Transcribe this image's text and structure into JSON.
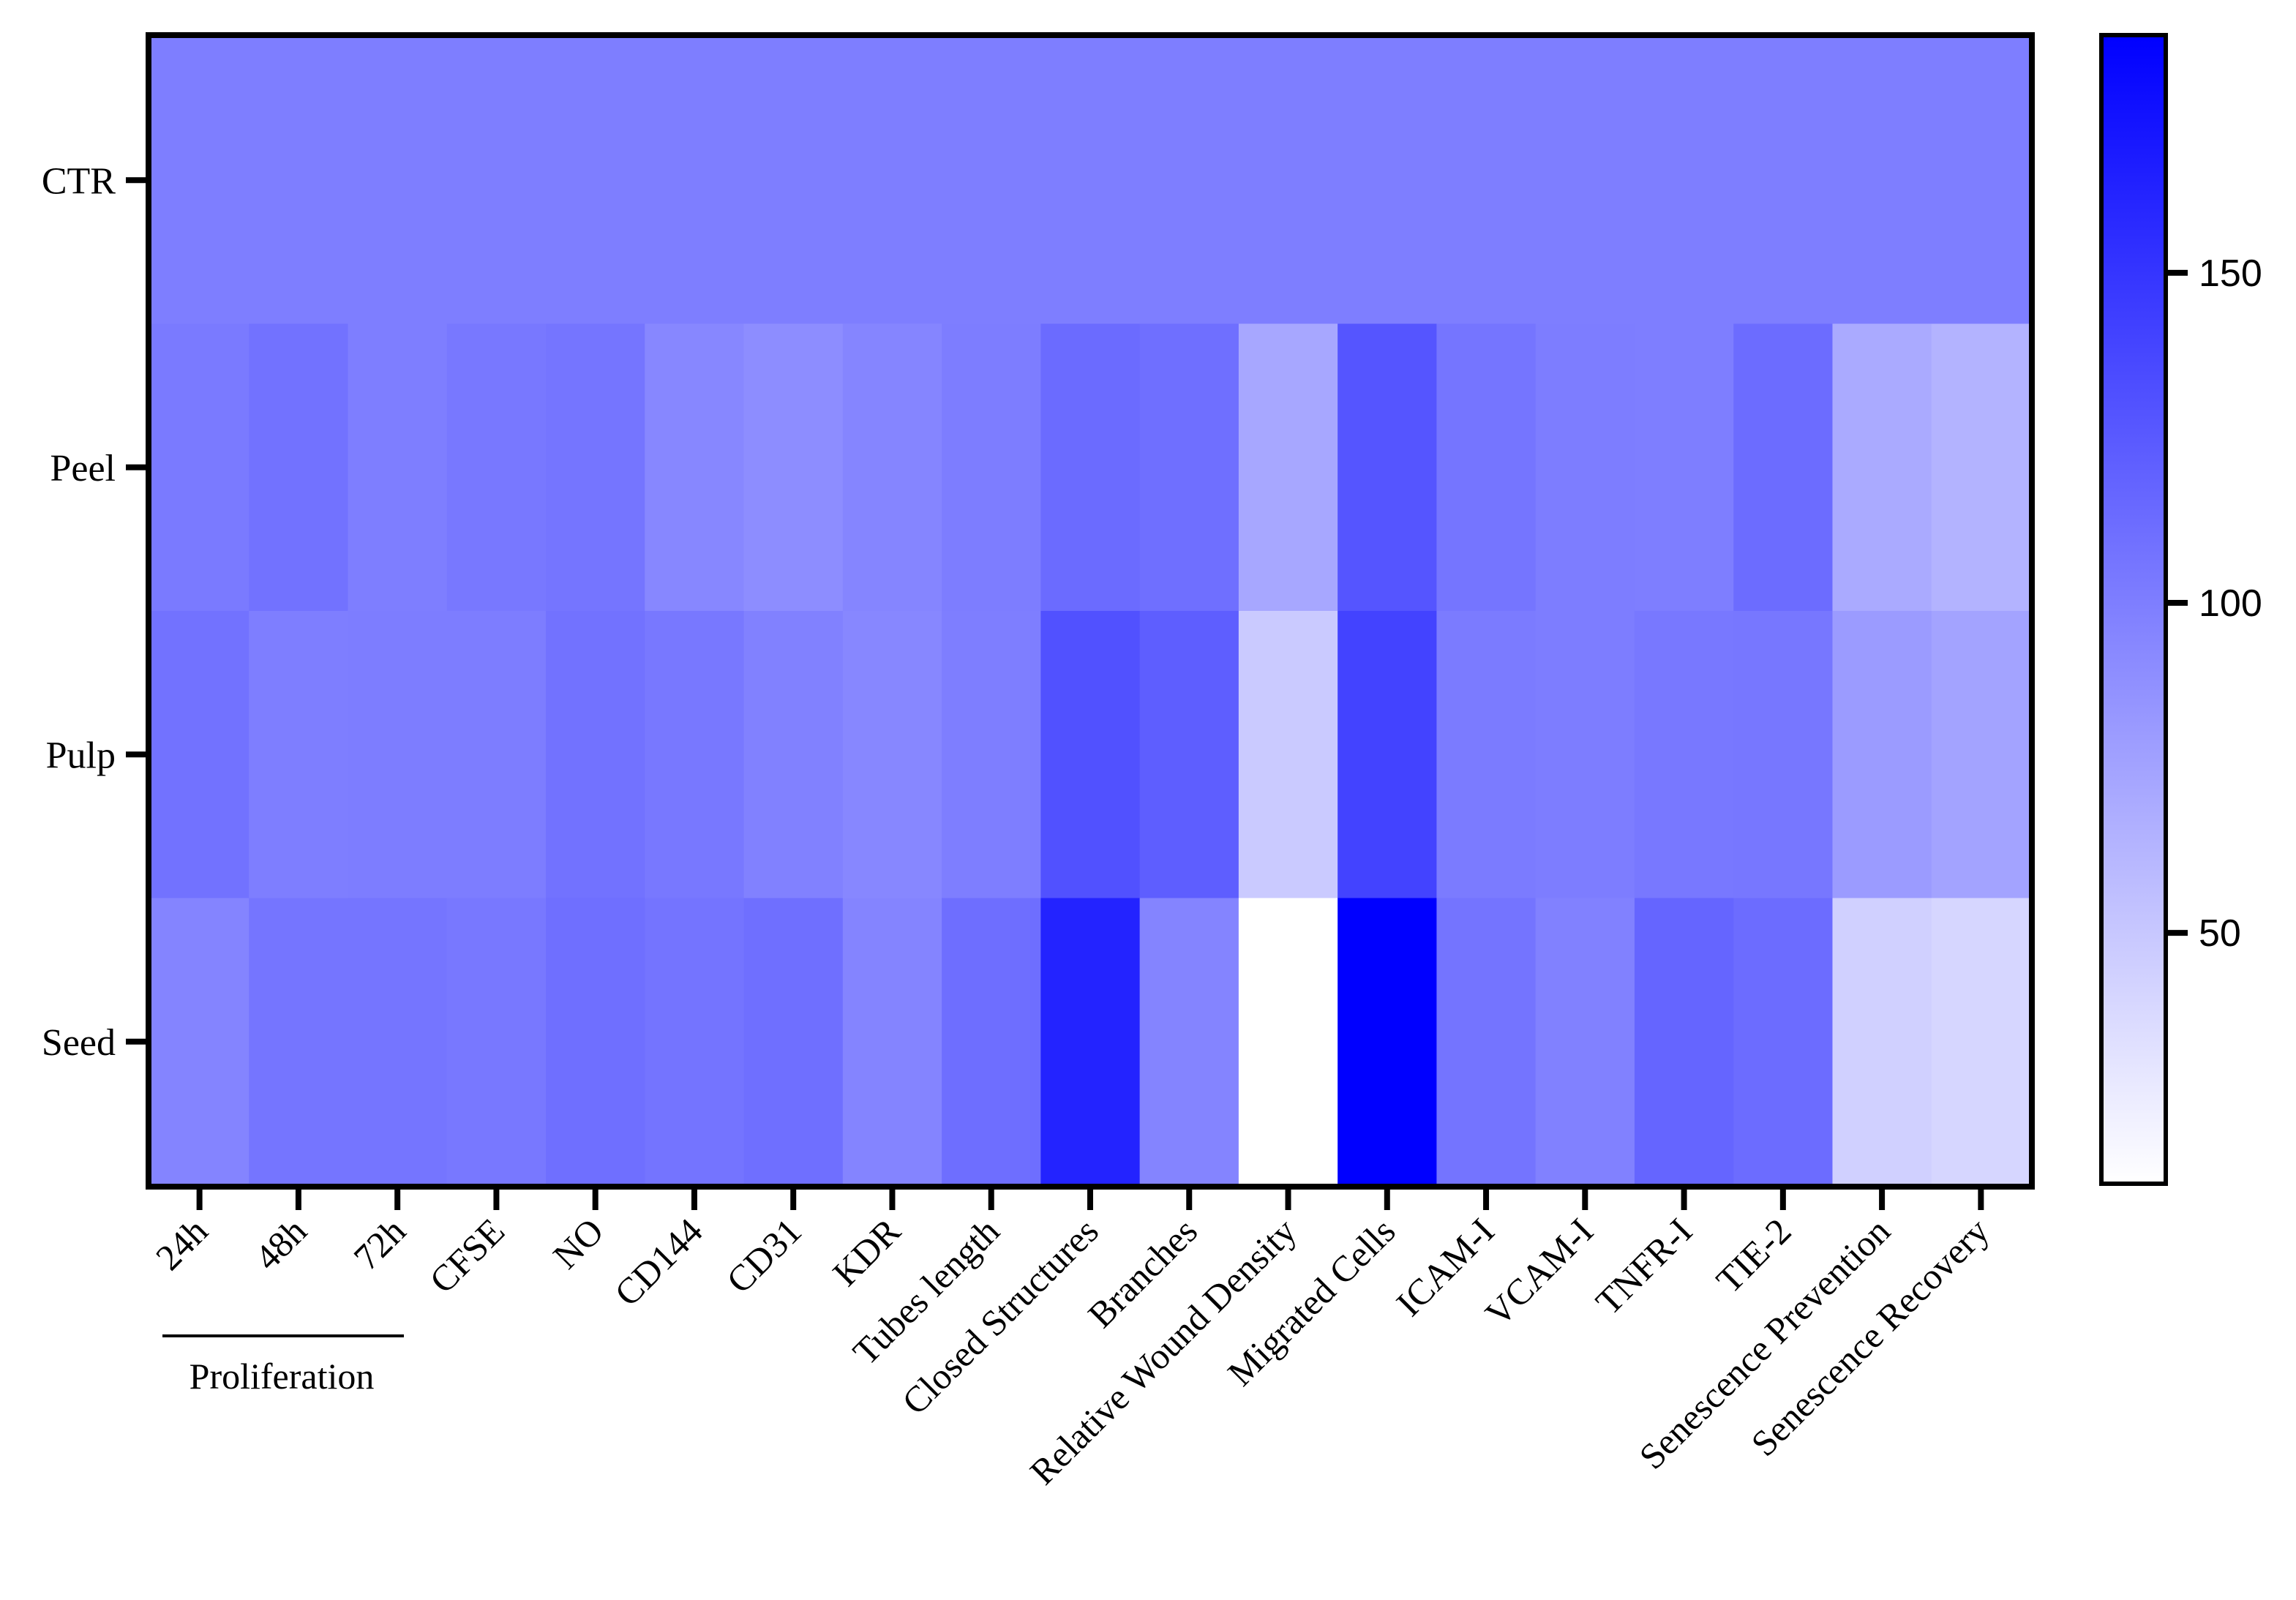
{
  "chart_data": {
    "type": "heatmap",
    "title": "",
    "xlabel": "",
    "ylabel": "",
    "rows": [
      "CTR",
      "Peel",
      "Pulp",
      "Seed"
    ],
    "columns": [
      "24h",
      "48h",
      "72h",
      "CFSE",
      "NO",
      "CD144",
      "CD31",
      "KDR",
      "Tubes length",
      "Closed Structures",
      "Branches",
      "Relative Wound Density",
      "Migrated Cells",
      "ICAM-I",
      "VCAM-I",
      "TNFR-I",
      "TIE-2",
      "Senescence Prevention",
      "Senescence Recovery"
    ],
    "values": [
      [
        100,
        100,
        100,
        100,
        100,
        100,
        100,
        100,
        100,
        100,
        100,
        100,
        100,
        100,
        100,
        100,
        100,
        100,
        100
      ],
      [
        103,
        108,
        100,
        104,
        106,
        94,
        90,
        95,
        101,
        113,
        110,
        72,
        128,
        106,
        101,
        100,
        112,
        70,
        64
      ],
      [
        108,
        100,
        101,
        101,
        108,
        104,
        98,
        94,
        100,
        131,
        122,
        48,
        140,
        102,
        101,
        104,
        105,
        80,
        75
      ],
      [
        96,
        106,
        106,
        104,
        110,
        107,
        110,
        96,
        111,
        162,
        96,
        12,
        186,
        107,
        98,
        117,
        112,
        44,
        40
      ]
    ],
    "group_annotation": {
      "label": "Proliferation",
      "columns": [
        "24h",
        "48h",
        "72h"
      ]
    },
    "colorbar": {
      "min": 12,
      "max": 186,
      "ticks": [
        50,
        100,
        150
      ],
      "color_low": "#ffffff",
      "color_high": "#0000ff"
    },
    "grid": false
  }
}
